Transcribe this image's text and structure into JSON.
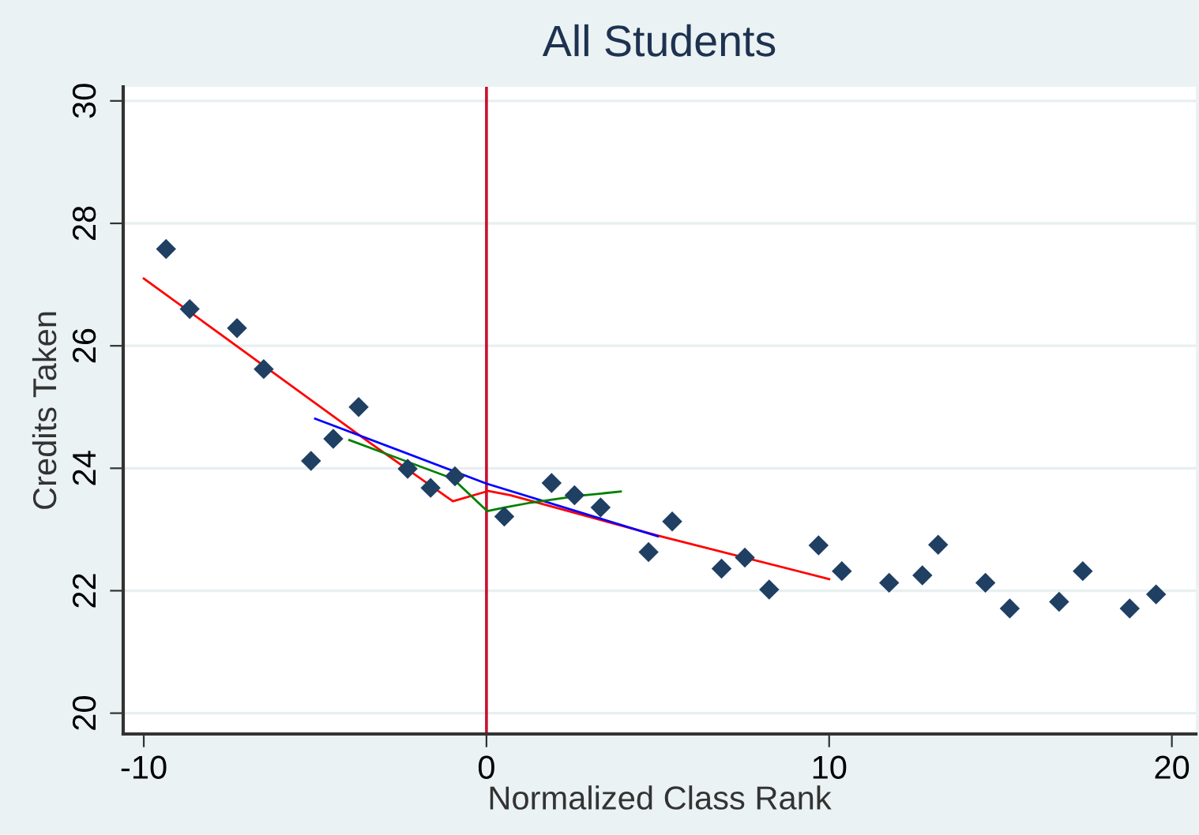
{
  "chart_data": {
    "type": "scatter",
    "title": "All Students",
    "xlabel": "Normalized Class Rank",
    "ylabel": "Credits Taken",
    "xlim": [
      -10.6,
      20.7
    ],
    "ylim": [
      19.66,
      30.23
    ],
    "xticks": [
      -10,
      0,
      10,
      20
    ],
    "yticks": [
      20,
      22,
      24,
      26,
      28,
      30
    ],
    "grid": "y",
    "legend": false,
    "series": [
      {
        "marker": "diamond",
        "color": "#1f3f63",
        "x": [
          -9.35,
          -8.66,
          -7.28,
          -6.5,
          -5.12,
          -4.47,
          -3.73,
          -2.3,
          -1.63,
          -0.92,
          0.52,
          1.9,
          2.57,
          3.33,
          4.73,
          5.42,
          6.86,
          7.54,
          8.25,
          9.69,
          10.37,
          11.75,
          12.72,
          13.18,
          14.56,
          15.27,
          16.71,
          17.4,
          18.77,
          19.54
        ],
        "values": [
          27.58,
          26.6,
          26.29,
          25.62,
          24.12,
          24.48,
          25.0,
          23.99,
          23.68,
          23.87,
          23.21,
          23.76,
          23.56,
          23.36,
          22.63,
          23.13,
          22.36,
          22.54,
          22.02,
          22.74,
          22.32,
          22.13,
          22.25,
          22.75,
          22.13,
          21.71,
          21.82,
          22.32,
          21.71,
          21.94
        ]
      },
      {
        "type": "line",
        "marker": "none",
        "line_style": "solid",
        "color": "#ff0000",
        "x": [
          -10,
          -3.44,
          -0.98,
          0.06,
          0.69,
          5,
          10
        ],
        "values": [
          27.1,
          24.43,
          23.46,
          23.63,
          23.56,
          22.9,
          22.19
        ]
      },
      {
        "type": "line",
        "marker": "none",
        "line_style": "solid",
        "color": "#0000ff",
        "x": [
          -5,
          0,
          5
        ],
        "values": [
          24.81,
          23.75,
          22.89
        ]
      },
      {
        "type": "line",
        "marker": "none",
        "line_style": "solid",
        "color": "#008000",
        "x": [
          -4.0,
          -0.98,
          0.02,
          0.55,
          1.31,
          2.7,
          3.92
        ],
        "values": [
          24.46,
          23.83,
          23.3,
          23.36,
          23.44,
          23.55,
          23.62
        ]
      }
    ],
    "ref_lines": [
      {
        "axis": "x",
        "value": 0,
        "color": "#c8102e",
        "line_style": "solid"
      }
    ]
  }
}
